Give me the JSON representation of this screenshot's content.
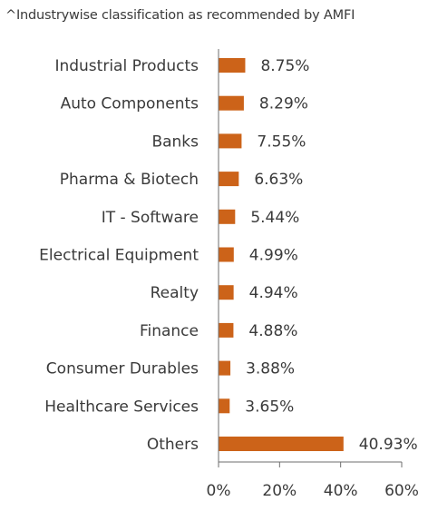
{
  "note": "^Industrywise classification as recommended by AMFI",
  "chart_data": {
    "type": "bar",
    "orientation": "horizontal",
    "categories": [
      "Industrial Products",
      "Auto Components",
      "Banks",
      "Pharma & Biotech",
      "IT - Software",
      "Electrical Equipment",
      "Realty",
      "Finance",
      "Consumer Durables",
      "Healthcare Services",
      "Others"
    ],
    "values": [
      8.75,
      8.29,
      7.55,
      6.63,
      5.44,
      4.99,
      4.94,
      4.88,
      3.88,
      3.65,
      40.93
    ],
    "value_labels": [
      "8.75%",
      "8.29%",
      "7.55%",
      "6.63%",
      "5.44%",
      "4.99%",
      "4.94%",
      "4.88%",
      "3.88%",
      "3.65%",
      "40.93%"
    ],
    "xlim": [
      0,
      60
    ],
    "xticks": [
      0,
      20,
      40,
      60
    ],
    "xtick_labels": [
      "0%",
      "20%",
      "40%",
      "60%"
    ],
    "grid": false,
    "bar_color": "#cc6319",
    "axis_color": "#6e6e6e",
    "title": "",
    "xlabel": "",
    "ylabel": ""
  }
}
